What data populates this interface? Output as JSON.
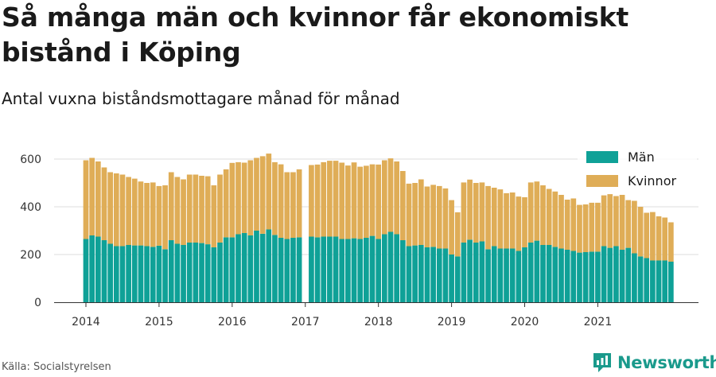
{
  "title": "Så många män och kvinnor får ekonomiskt bistånd i Köping",
  "subtitle": "Antal vuxna biståndsmottagare månad för månad",
  "source": "Källa: Socialstyrelsen",
  "brand": {
    "name": "Newsworthy",
    "icon": "newsworthy-logo-icon",
    "color": "#1a9a8c"
  },
  "chart_data": {
    "type": "bar",
    "stacked": true,
    "x_start": "2014-01",
    "x_axis_ticks": [
      "2014",
      "2015",
      "2016",
      "2017",
      "2018",
      "2019",
      "2020",
      "2021"
    ],
    "y_ticks": [
      0,
      200,
      400,
      600
    ],
    "ylim": [
      0,
      650
    ],
    "grid": true,
    "legend_position": "top-right",
    "gaps": [
      "2017-01"
    ],
    "series": [
      {
        "name": "Män",
        "color": "#0fa197",
        "values": [
          265,
          280,
          275,
          260,
          245,
          235,
          235,
          240,
          238,
          238,
          235,
          232,
          237,
          222,
          260,
          245,
          240,
          250,
          250,
          248,
          243,
          230,
          250,
          272,
          272,
          285,
          290,
          280,
          300,
          287,
          305,
          282,
          270,
          265,
          270,
          272,
          275,
          272,
          275,
          275,
          275,
          265,
          265,
          268,
          265,
          270,
          278,
          265,
          285,
          295,
          285,
          260,
          235,
          238,
          240,
          230,
          232,
          225,
          225,
          200,
          192,
          250,
          262,
          250,
          255,
          222,
          235,
          225,
          225,
          225,
          215,
          230,
          250,
          258,
          240,
          240,
          232,
          225,
          220,
          215,
          208,
          210,
          212,
          212,
          235,
          228,
          235,
          220,
          228,
          205,
          192,
          185,
          175,
          175,
          175,
          170
        ]
      },
      {
        "name": "Kvinnor",
        "color": "#dfad57",
        "values": [
          330,
          325,
          315,
          305,
          300,
          305,
          300,
          285,
          280,
          268,
          265,
          270,
          250,
          268,
          285,
          280,
          275,
          285,
          285,
          282,
          285,
          260,
          285,
          285,
          312,
          302,
          295,
          315,
          305,
          325,
          318,
          305,
          308,
          280,
          275,
          285,
          300,
          305,
          312,
          318,
          318,
          320,
          308,
          318,
          303,
          302,
          300,
          312,
          310,
          308,
          305,
          290,
          262,
          262,
          275,
          255,
          260,
          262,
          252,
          228,
          185,
          252,
          252,
          250,
          247,
          265,
          245,
          248,
          232,
          235,
          228,
          210,
          252,
          248,
          250,
          235,
          232,
          225,
          210,
          220,
          200,
          200,
          205,
          205,
          213,
          225,
          210,
          230,
          200,
          220,
          208,
          190,
          203,
          185,
          180,
          165
        ]
      }
    ]
  }
}
